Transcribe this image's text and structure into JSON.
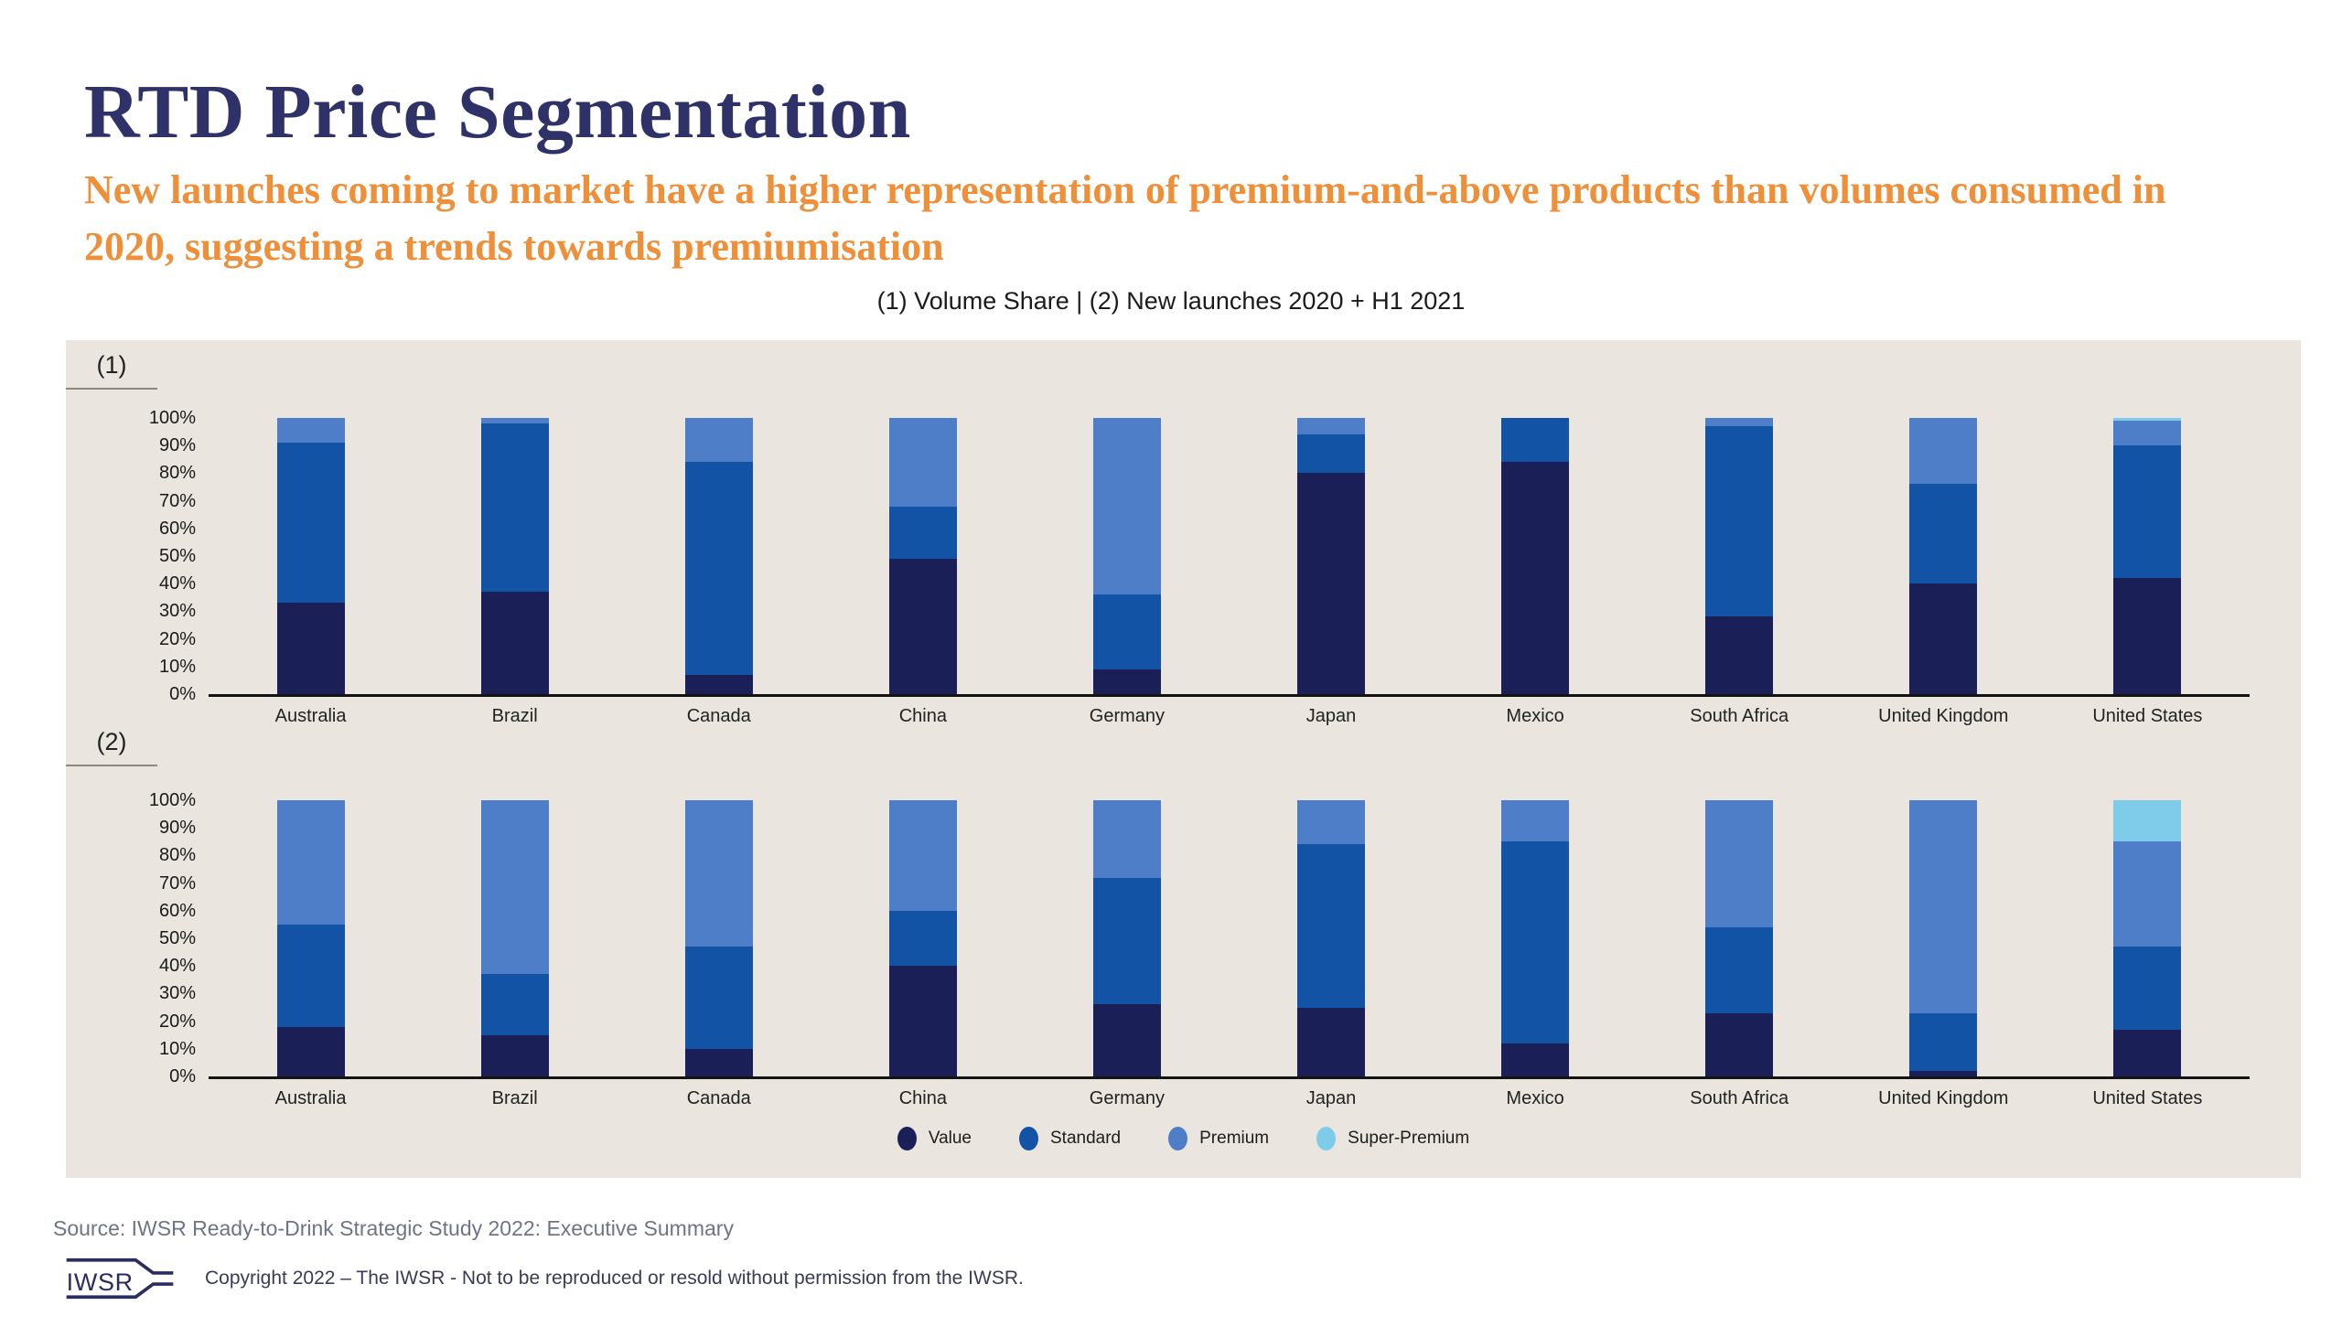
{
  "title": "RTD Price Segmentation",
  "subtitle": "New launches coming to market have a higher representation of premium-and-above products than volumes consumed in 2020, suggesting a trends towards premiumisation",
  "chart_header": "(1) Volume Share | (2) New launches 2020 + H1 2021",
  "colors": {
    "value": "#1a2057",
    "standard": "#1253a5",
    "premium": "#4e7ec8",
    "super_premium": "#7eccea",
    "panel_bg": "#eae5de",
    "title_color": "#2f3268",
    "subtitle_color": "#ee8f3a",
    "axis_color": "#141414",
    "logo_color": "#2b2d5f"
  },
  "y_ticks": [
    "100%",
    "90%",
    "80%",
    "70%",
    "60%",
    "50%",
    "40%",
    "30%",
    "20%",
    "10%",
    "0%"
  ],
  "legend": [
    {
      "key": "value",
      "label": "Value"
    },
    {
      "key": "standard",
      "label": "Standard"
    },
    {
      "key": "premium",
      "label": "Premium"
    },
    {
      "key": "super_premium",
      "label": "Super-Premium"
    }
  ],
  "chart_data": [
    {
      "type": "bar",
      "stacked": true,
      "index_label": "(1)",
      "title": "Volume Share",
      "ylim": [
        0,
        100
      ],
      "units": "%",
      "categories": [
        "Australia",
        "Brazil",
        "Canada",
        "China",
        "Germany",
        "Japan",
        "Mexico",
        "South Africa",
        "United Kingdom",
        "United States"
      ],
      "series": [
        {
          "key": "value",
          "name": "Value",
          "values": [
            33,
            37,
            7,
            49,
            9,
            80,
            84,
            28,
            40,
            42
          ]
        },
        {
          "key": "standard",
          "name": "Standard",
          "values": [
            58,
            61,
            77,
            19,
            27,
            14,
            16,
            69,
            36,
            48
          ]
        },
        {
          "key": "premium",
          "name": "Premium",
          "values": [
            9,
            2,
            16,
            32,
            64,
            6,
            0,
            3,
            24,
            9
          ]
        },
        {
          "key": "super_premium",
          "name": "Super-Premium",
          "values": [
            0,
            0,
            0,
            0,
            0,
            0,
            0,
            0,
            0,
            1
          ]
        }
      ]
    },
    {
      "type": "bar",
      "stacked": true,
      "index_label": "(2)",
      "title": "New launches 2020 + H1 2021",
      "ylim": [
        0,
        100
      ],
      "units": "%",
      "categories": [
        "Australia",
        "Brazil",
        "Canada",
        "China",
        "Germany",
        "Japan",
        "Mexico",
        "South Africa",
        "United Kingdom",
        "United States"
      ],
      "series": [
        {
          "key": "value",
          "name": "Value",
          "values": [
            18,
            15,
            10,
            40,
            26,
            25,
            12,
            23,
            2,
            17
          ]
        },
        {
          "key": "standard",
          "name": "Standard",
          "values": [
            37,
            22,
            37,
            20,
            46,
            59,
            73,
            31,
            21,
            30
          ]
        },
        {
          "key": "premium",
          "name": "Premium",
          "values": [
            45,
            63,
            53,
            40,
            28,
            16,
            15,
            46,
            77,
            38
          ]
        },
        {
          "key": "super_premium",
          "name": "Super-Premium",
          "values": [
            0,
            0,
            0,
            0,
            0,
            0,
            0,
            0,
            0,
            15
          ]
        }
      ]
    }
  ],
  "footer": {
    "source": "Source: IWSR Ready-to-Drink Strategic Study 2022: Executive Summary",
    "copyright": "Copyright 2022 – The IWSR - Not to be reproduced or resold without permission from the IWSR.",
    "logo_text": "IWSR"
  }
}
